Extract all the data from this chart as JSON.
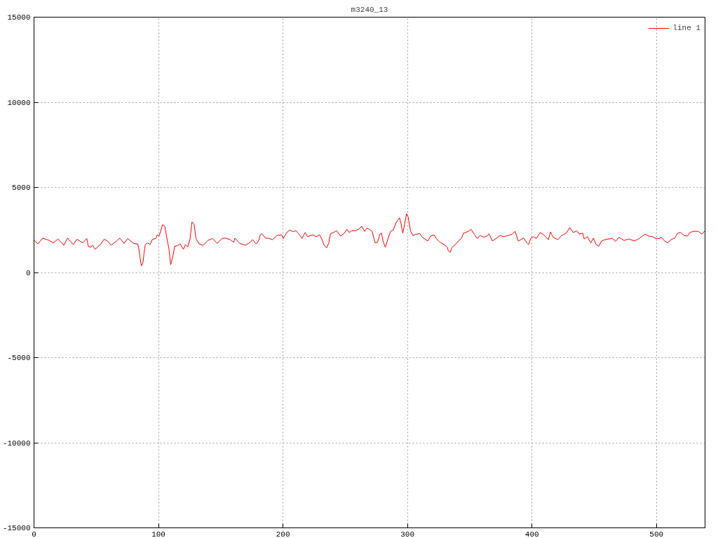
{
  "chart_data": {
    "type": "line",
    "title": "m3240_13",
    "xlim": [
      0,
      539
    ],
    "ylim": [
      -15000,
      15000
    ],
    "xticks": [
      0,
      100,
      200,
      300,
      400,
      500
    ],
    "yticks": [
      -15000,
      -10000,
      -5000,
      0,
      5000,
      10000,
      15000
    ],
    "grid": true,
    "legend": "top right",
    "x": [
      0,
      3.2,
      7,
      11.7,
      15.5,
      19.3,
      24,
      26.9,
      31.6,
      34.5,
      39.2,
      42.4,
      43.6,
      45.5,
      46.8,
      49.2,
      51.5,
      53.4,
      56.3,
      59.1,
      61.9,
      65.7,
      68.9,
      72.3,
      75.2,
      79.9,
      83.3,
      84.3,
      85.2,
      86.2,
      87.5,
      88.4,
      89.4,
      91.3,
      93.2,
      95.1,
      97.9,
      98.9,
      100.4,
      101.7,
      103.2,
      105.1,
      106.4,
      108.3,
      109.8,
      111.7,
      113,
      115,
      117.4,
      120,
      121.6,
      123.5,
      125.4,
      126.9,
      128.6,
      130.1,
      132.6,
      135.8,
      138.3,
      139.6,
      143.4,
      147.2,
      151,
      153.8,
      157.6,
      160.4,
      161.4,
      165.2,
      169.9,
      173.7,
      175.6,
      178.4,
      180.3,
      181.8,
      183.1,
      186,
      188.8,
      191.6,
      195.1,
      198.9,
      200.2,
      203,
      205.5,
      207.8,
      210.6,
      212.5,
      215.3,
      217.8,
      219.7,
      223.9,
      226.7,
      229.5,
      231.4,
      233,
      235.2,
      236.8,
      238.1,
      240.5,
      243.2,
      246.2,
      249.4,
      251.3,
      253.2,
      255.1,
      258,
      260.8,
      263.3,
      265.5,
      267.4,
      269.3,
      271.6,
      274,
      276,
      277.8,
      279.2,
      280.3,
      282.2,
      284.5,
      286.4,
      288.6,
      291.1,
      293.6,
      294.9,
      296.2,
      297.7,
      299.2,
      300.6,
      302.4,
      304.4,
      307.2,
      310,
      311.9,
      316.3,
      318.6,
      321.4,
      323.3,
      326.1,
      329.5,
      331.8,
      332.8,
      334.3,
      335.6,
      338.4,
      341.3,
      343.2,
      345,
      348.9,
      351.1,
      353.6,
      356.1,
      358.3,
      361.2,
      364,
      365.5,
      368.2,
      371.6,
      374.4,
      377.3,
      380.7,
      383.9,
      386.4,
      389,
      393.4,
      395.8,
      397.2,
      399,
      401,
      403.4,
      406.6,
      409.5,
      413.2,
      414.8,
      417,
      420.8,
      423.7,
      427.5,
      430.3,
      433.1,
      436,
      437.9,
      440.7,
      442,
      444.5,
      447.3,
      449.3,
      451.5,
      453.6,
      455.9,
      458.7,
      461.5,
      464.4,
      467.2,
      470,
      473.9,
      477.7,
      482.4,
      486.2,
      488.6,
      490.9,
      493.8,
      496.6,
      499.4,
      502.3,
      503.8,
      506.1,
      508.9,
      511.7,
      514.6,
      517,
      519.3,
      522.2,
      525,
      526.9,
      529.8,
      533.5,
      536.4,
      538.9
    ],
    "series": [
      {
        "name": "line 1",
        "color": "#ff0000",
        "values": [
          1900,
          1680,
          2020,
          1900,
          1740,
          1970,
          1600,
          2020,
          1640,
          1950,
          1740,
          2000,
          1530,
          1480,
          1610,
          1360,
          1540,
          1640,
          1950,
          1850,
          1600,
          1810,
          2020,
          1710,
          2000,
          1710,
          1680,
          1360,
          860,
          390,
          570,
          1140,
          1640,
          1740,
          1640,
          1950,
          2000,
          2210,
          2140,
          2420,
          2810,
          2710,
          2140,
          1430,
          460,
          1000,
          1540,
          1570,
          1680,
          1360,
          1640,
          1500,
          2000,
          2970,
          2820,
          2000,
          1680,
          1600,
          1780,
          1880,
          2000,
          1710,
          2000,
          2020,
          1930,
          1780,
          2020,
          1710,
          1600,
          1780,
          1930,
          1680,
          1850,
          2210,
          2280,
          2020,
          2000,
          1930,
          2170,
          2210,
          2000,
          2350,
          2500,
          2400,
          2450,
          2280,
          2000,
          2350,
          2110,
          2210,
          2110,
          2210,
          1930,
          1600,
          1460,
          1740,
          2280,
          2350,
          2450,
          2140,
          2310,
          2540,
          2350,
          2450,
          2450,
          2540,
          2710,
          2420,
          2600,
          2540,
          2420,
          1740,
          1780,
          2250,
          2310,
          1850,
          1480,
          2020,
          2420,
          2500,
          2970,
          3210,
          2850,
          2310,
          2850,
          3450,
          3250,
          2450,
          2170,
          2250,
          2280,
          2070,
          1850,
          2140,
          2210,
          1970,
          1780,
          1640,
          1500,
          1280,
          1180,
          1460,
          1640,
          1880,
          2000,
          2310,
          2420,
          2540,
          2250,
          2000,
          2170,
          2070,
          2140,
          2280,
          1850,
          2020,
          2170,
          2110,
          2170,
          2250,
          2420,
          1850,
          2020,
          1740,
          1640,
          2000,
          2110,
          2000,
          2350,
          2210,
          1930,
          2380,
          2070,
          1930,
          2170,
          2310,
          2640,
          2350,
          2450,
          2250,
          2310,
          1970,
          2110,
          1740,
          2020,
          1640,
          1540,
          1850,
          1930,
          1970,
          2000,
          1830,
          2070,
          1880,
          1970,
          1850,
          2000,
          2140,
          2250,
          2140,
          2110,
          2000,
          2000,
          2070,
          1880,
          1740,
          1930,
          2020,
          2310,
          2350,
          2170,
          2140,
          2350,
          2420,
          2420,
          2250,
          2450
        ]
      }
    ]
  }
}
